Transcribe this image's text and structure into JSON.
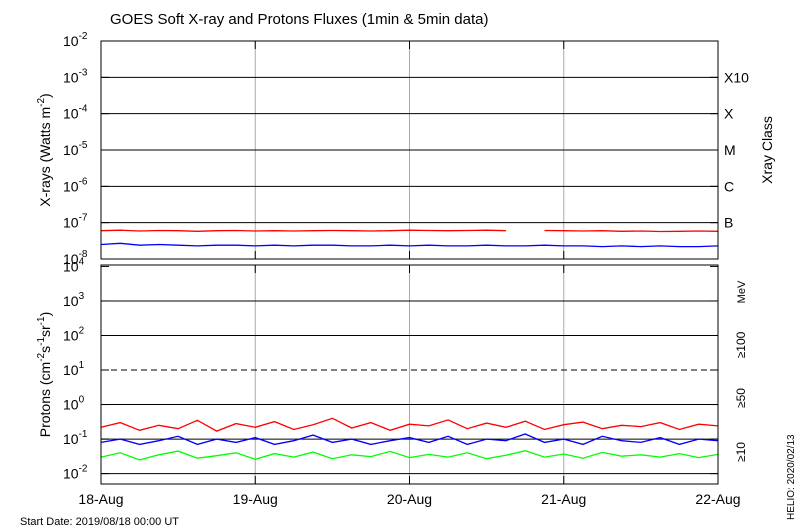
{
  "chart_data": [
    {
      "type": "line",
      "title": "GOES Soft X-ray and Protons Fluxes   (1min & 5min data)",
      "ylabel_parts": [
        "X-rays (Watts m",
        "-2",
        ")"
      ],
      "right_axis_label": "Xray Class",
      "log_y": true,
      "grid": true,
      "ylim": [
        1e-08,
        0.01
      ],
      "yticks": [
        {
          "value": 0.01,
          "label": "10",
          "exponent": "-2"
        },
        {
          "value": 0.001,
          "label": "10",
          "exponent": "-3"
        },
        {
          "value": 0.0001,
          "label": "10",
          "exponent": "-4"
        },
        {
          "value": 1e-05,
          "label": "10",
          "exponent": "-5"
        },
        {
          "value": 1e-06,
          "label": "10",
          "exponent": "-6"
        },
        {
          "value": 1e-07,
          "label": "10",
          "exponent": "-7"
        },
        {
          "value": 1e-08,
          "label": "10",
          "exponent": "-8"
        }
      ],
      "right_labels": [
        {
          "value": 0.001,
          "label": "X10"
        },
        {
          "value": 0.0001,
          "label": "X"
        },
        {
          "value": 1e-05,
          "label": "M"
        },
        {
          "value": 1e-06,
          "label": "C"
        },
        {
          "value": 1e-07,
          "label": "B"
        }
      ],
      "xlim": [
        0,
        96
      ],
      "xticks": [
        0,
        24,
        48,
        72,
        96
      ],
      "x": [
        0,
        3,
        6,
        9,
        12,
        15,
        18,
        21,
        24,
        27,
        30,
        33,
        36,
        39,
        42,
        45,
        48,
        51,
        54,
        57,
        60,
        63,
        66,
        69,
        72,
        75,
        78,
        81,
        84,
        87,
        90,
        93,
        96
      ],
      "series": [
        {
          "color": "#ff0000",
          "values": [
            6e-08,
            6.2e-08,
            5.9e-08,
            6.1e-08,
            6e-08,
            5.8e-08,
            6e-08,
            6.1e-08,
            5.9e-08,
            6e-08,
            5.9e-08,
            6e-08,
            6.1e-08,
            6e-08,
            5.9e-08,
            6e-08,
            6.2e-08,
            6.1e-08,
            6e-08,
            6.1e-08,
            6.2e-08,
            6e-08,
            null,
            6.1e-08,
            6e-08,
            5.9e-08,
            6e-08,
            5.8e-08,
            5.9e-08,
            5.7e-08,
            5.8e-08,
            5.9e-08,
            5.8e-08
          ]
        },
        {
          "color": "#0000ff",
          "values": [
            2.5e-08,
            2.7e-08,
            2.4e-08,
            2.5e-08,
            2.4e-08,
            2.3e-08,
            2.4e-08,
            2.4e-08,
            2.3e-08,
            2.4e-08,
            2.3e-08,
            2.4e-08,
            2.4e-08,
            2.3e-08,
            2.3e-08,
            2.4e-08,
            2.3e-08,
            2.4e-08,
            2.3e-08,
            2.3e-08,
            2.4e-08,
            2.3e-08,
            2.3e-08,
            2.4e-08,
            2.3e-08,
            2.3e-08,
            2.2e-08,
            2.3e-08,
            2.2e-08,
            2.3e-08,
            2.2e-08,
            2.2e-08,
            2.3e-08
          ]
        }
      ]
    },
    {
      "type": "line",
      "ylabel_parts": [
        "Protons (cm",
        "-2",
        "s",
        "-1",
        "sr",
        "-1",
        ")"
      ],
      "energy_unit": "MeV",
      "log_y": true,
      "grid": true,
      "threshold": 10,
      "ylim": [
        0.005,
        11000
      ],
      "yticks": [
        {
          "value": 10000,
          "label": "10",
          "exponent": "4"
        },
        {
          "value": 1000,
          "label": "10",
          "exponent": "3"
        },
        {
          "value": 100,
          "label": "10",
          "exponent": "2"
        },
        {
          "value": 10,
          "label": "10",
          "exponent": "1"
        },
        {
          "value": 1,
          "label": "10",
          "exponent": "0"
        },
        {
          "value": 0.1,
          "label": "10",
          "exponent": "-1"
        },
        {
          "value": 0.01,
          "label": "10",
          "exponent": "-2"
        }
      ],
      "xlim": [
        0,
        96
      ],
      "xticks": [
        {
          "value": 0,
          "label": "18-Aug"
        },
        {
          "value": 24,
          "label": "19-Aug"
        },
        {
          "value": 48,
          "label": "20-Aug"
        },
        {
          "value": 72,
          "label": "21-Aug"
        },
        {
          "value": 96,
          "label": "22-Aug"
        }
      ],
      "x": [
        0,
        3,
        6,
        9,
        12,
        15,
        18,
        21,
        24,
        27,
        30,
        33,
        36,
        39,
        42,
        45,
        48,
        51,
        54,
        57,
        60,
        63,
        66,
        69,
        72,
        75,
        78,
        81,
        84,
        87,
        90,
        93,
        96
      ],
      "series": [
        {
          "name": "≥100",
          "color": "#00ff00",
          "values": [
            0.03,
            0.04,
            0.025,
            0.035,
            0.045,
            0.028,
            0.033,
            0.04,
            0.026,
            0.038,
            0.03,
            0.042,
            0.027,
            0.035,
            0.031,
            0.044,
            0.029,
            0.036,
            0.03,
            0.04,
            0.027,
            0.034,
            0.046,
            0.03,
            0.037,
            0.028,
            0.041,
            0.032,
            0.035,
            0.03,
            0.038,
            0.029,
            0.036
          ]
        },
        {
          "name": "≥50",
          "color": "#0000ff",
          "values": [
            0.08,
            0.1,
            0.07,
            0.09,
            0.12,
            0.07,
            0.1,
            0.08,
            0.11,
            0.07,
            0.09,
            0.13,
            0.08,
            0.1,
            0.07,
            0.09,
            0.11,
            0.08,
            0.12,
            0.07,
            0.1,
            0.09,
            0.14,
            0.08,
            0.1,
            0.07,
            0.12,
            0.09,
            0.08,
            0.11,
            0.07,
            0.1,
            0.09
          ]
        },
        {
          "name": "≥10",
          "color": "#ff0000",
          "values": [
            0.22,
            0.3,
            0.18,
            0.25,
            0.2,
            0.35,
            0.17,
            0.28,
            0.22,
            0.32,
            0.19,
            0.26,
            0.4,
            0.21,
            0.3,
            0.18,
            0.27,
            0.24,
            0.36,
            0.2,
            0.29,
            0.22,
            0.33,
            0.19,
            0.26,
            0.31,
            0.2,
            0.25,
            0.23,
            0.3,
            0.19,
            0.27,
            0.24
          ]
        }
      ]
    }
  ],
  "footer": {
    "start_date": "Start Date: 2019/08/18 00:00 UT",
    "credit": "HELIO: 2020/02/13"
  }
}
